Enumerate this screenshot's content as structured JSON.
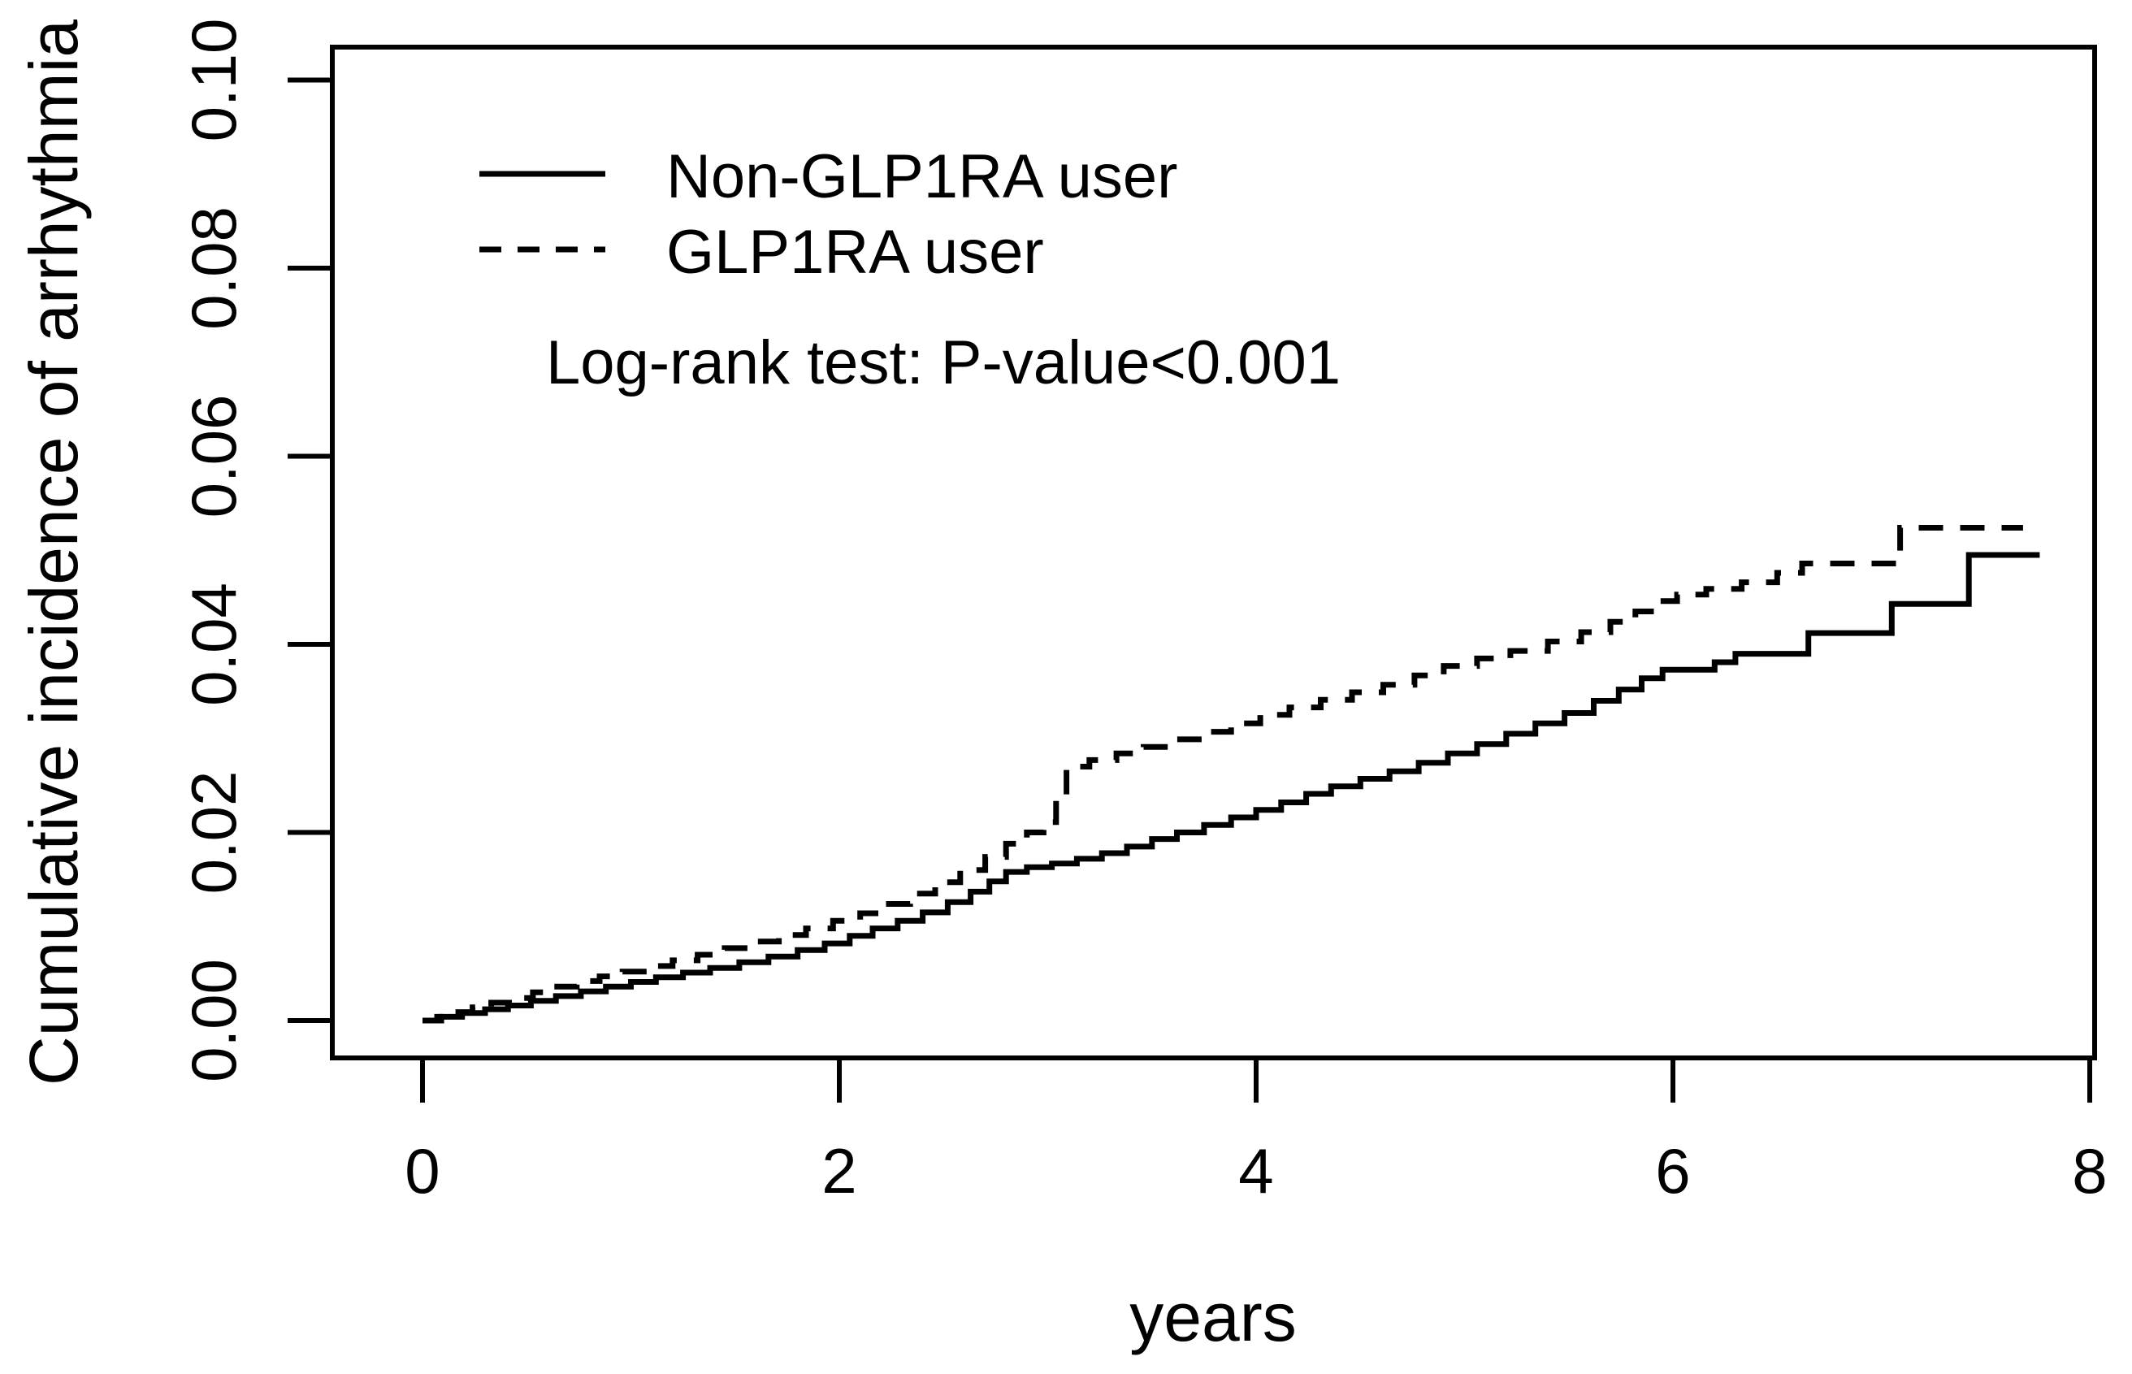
{
  "figure": {
    "background_color": "#ffffff",
    "ink_color": "#000000"
  },
  "chart_data": {
    "type": "line",
    "subtype": "cumulative-incidence-step",
    "title": "",
    "xlabel": "years",
    "ylabel": "Cumulative incidence of arrhythmia",
    "xlim": [
      0,
      8
    ],
    "ylim": [
      0.0,
      0.1
    ],
    "grid": "off",
    "box": "full",
    "x_tick_values": [
      0,
      2,
      4,
      6,
      8
    ],
    "x_tick_labels": [
      "0",
      "2",
      "4",
      "6",
      "8"
    ],
    "y_tick_values": [
      0.0,
      0.02,
      0.04,
      0.06,
      0.08,
      0.1
    ],
    "y_tick_labels": [
      "0.00",
      "0.02",
      "0.04",
      "0.06",
      "0.08",
      "0.10"
    ],
    "annotation": "Log-rank test: P-value<0.001",
    "legend": {
      "position": "top-left",
      "entries": [
        {
          "label": "Non-GLP1RA user",
          "line_style": "solid"
        },
        {
          "label": "GLP1RA user",
          "line_style": "dashed"
        }
      ]
    },
    "series": [
      {
        "name": "Non-GLP1RA user",
        "line_style": "solid",
        "color": "#000000",
        "points": [
          [
            0.0,
            0.0
          ],
          [
            0.09,
            0.0004
          ],
          [
            0.19,
            0.0008
          ],
          [
            0.3,
            0.0012
          ],
          [
            0.41,
            0.0016
          ],
          [
            0.52,
            0.0021
          ],
          [
            0.64,
            0.0026
          ],
          [
            0.76,
            0.0031
          ],
          [
            0.88,
            0.0036
          ],
          [
            1.0,
            0.0041
          ],
          [
            1.12,
            0.0046
          ],
          [
            1.25,
            0.0051
          ],
          [
            1.38,
            0.0056
          ],
          [
            1.52,
            0.0062
          ],
          [
            1.66,
            0.0068
          ],
          [
            1.8,
            0.0075
          ],
          [
            1.93,
            0.0082
          ],
          [
            2.05,
            0.009
          ],
          [
            2.16,
            0.0098
          ],
          [
            2.28,
            0.0106
          ],
          [
            2.4,
            0.0115
          ],
          [
            2.52,
            0.0126
          ],
          [
            2.63,
            0.0137
          ],
          [
            2.72,
            0.0148
          ],
          [
            2.8,
            0.0158
          ],
          [
            2.9,
            0.0163
          ],
          [
            3.02,
            0.0167
          ],
          [
            3.14,
            0.0172
          ],
          [
            3.26,
            0.0178
          ],
          [
            3.38,
            0.0185
          ],
          [
            3.5,
            0.0193
          ],
          [
            3.62,
            0.02
          ],
          [
            3.75,
            0.0208
          ],
          [
            3.88,
            0.0216
          ],
          [
            4.0,
            0.0224
          ],
          [
            4.12,
            0.0232
          ],
          [
            4.24,
            0.0241
          ],
          [
            4.36,
            0.0249
          ],
          [
            4.5,
            0.0257
          ],
          [
            4.64,
            0.0265
          ],
          [
            4.78,
            0.0274
          ],
          [
            4.92,
            0.0284
          ],
          [
            5.06,
            0.0294
          ],
          [
            5.2,
            0.0305
          ],
          [
            5.34,
            0.0316
          ],
          [
            5.48,
            0.0327
          ],
          [
            5.62,
            0.034
          ],
          [
            5.74,
            0.0352
          ],
          [
            5.85,
            0.0364
          ],
          [
            5.95,
            0.0373
          ],
          [
            6.2,
            0.0381
          ],
          [
            6.3,
            0.039
          ],
          [
            6.65,
            0.0412
          ],
          [
            7.05,
            0.0443
          ],
          [
            7.42,
            0.0495
          ],
          [
            7.76,
            0.0495
          ]
        ]
      },
      {
        "name": "GLP1RA user",
        "line_style": "dashed",
        "color": "#000000",
        "points": [
          [
            0.0,
            0.0
          ],
          [
            0.07,
            0.0004
          ],
          [
            0.15,
            0.0009
          ],
          [
            0.24,
            0.0014
          ],
          [
            0.33,
            0.0019
          ],
          [
            0.43,
            0.0024
          ],
          [
            0.53,
            0.003
          ],
          [
            0.63,
            0.0036
          ],
          [
            0.74,
            0.0042
          ],
          [
            0.85,
            0.0047
          ],
          [
            0.96,
            0.0052
          ],
          [
            1.08,
            0.0058
          ],
          [
            1.2,
            0.0064
          ],
          [
            1.32,
            0.007
          ],
          [
            1.45,
            0.0077
          ],
          [
            1.58,
            0.0084
          ],
          [
            1.71,
            0.0091
          ],
          [
            1.84,
            0.0098
          ],
          [
            1.97,
            0.0106
          ],
          [
            2.1,
            0.0114
          ],
          [
            2.22,
            0.0124
          ],
          [
            2.34,
            0.0135
          ],
          [
            2.46,
            0.0147
          ],
          [
            2.58,
            0.016
          ],
          [
            2.7,
            0.0174
          ],
          [
            2.8,
            0.0188
          ],
          [
            2.9,
            0.02
          ],
          [
            2.98,
            0.0211
          ],
          [
            3.04,
            0.024
          ],
          [
            3.09,
            0.027
          ],
          [
            3.2,
            0.0277
          ],
          [
            3.33,
            0.0284
          ],
          [
            3.46,
            0.0291
          ],
          [
            3.6,
            0.0299
          ],
          [
            3.74,
            0.0307
          ],
          [
            3.88,
            0.0316
          ],
          [
            4.02,
            0.0325
          ],
          [
            4.16,
            0.0333
          ],
          [
            4.31,
            0.0341
          ],
          [
            4.46,
            0.0349
          ],
          [
            4.61,
            0.0357
          ],
          [
            4.76,
            0.0367
          ],
          [
            4.9,
            0.0377
          ],
          [
            5.06,
            0.0385
          ],
          [
            5.22,
            0.0393
          ],
          [
            5.4,
            0.0403
          ],
          [
            5.56,
            0.0413
          ],
          [
            5.7,
            0.0424
          ],
          [
            5.82,
            0.0435
          ],
          [
            5.92,
            0.0446
          ],
          [
            6.02,
            0.0453
          ],
          [
            6.16,
            0.0459
          ],
          [
            6.33,
            0.0466
          ],
          [
            6.5,
            0.0476
          ],
          [
            6.62,
            0.0486
          ],
          [
            7.09,
            0.0524
          ],
          [
            7.68,
            0.0524
          ]
        ]
      }
    ]
  }
}
